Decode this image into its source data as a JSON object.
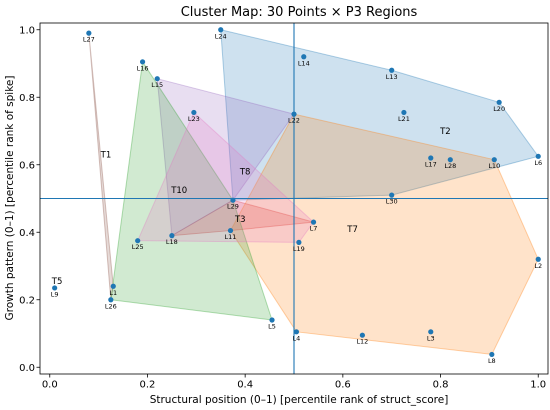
{
  "chart_data": {
    "type": "scatter",
    "title": "Cluster Map: 30 Points × P3 Regions",
    "xlabel": "Structural position (0–1) [percentile rank of struct_score]",
    "ylabel": "Growth pattern (0–1) [percentile rank of spike]",
    "xlim": [
      -0.02,
      1.02
    ],
    "ylim": [
      -0.02,
      1.02
    ],
    "xticks": [
      "0.0",
      "0.2",
      "0.4",
      "0.6",
      "0.8",
      "1.0"
    ],
    "yticks": [
      "0.0",
      "0.2",
      "0.4",
      "0.6",
      "0.8",
      "1.0"
    ],
    "xtick_values": [
      0,
      0.2,
      0.4,
      0.6,
      0.8,
      1.0
    ],
    "ytick_values": [
      0,
      0.2,
      0.4,
      0.6,
      0.8,
      1.0
    ],
    "reference_lines": {
      "x": 0.5,
      "y": 0.5,
      "color": "#1f77b4"
    },
    "point_color": "#1f77b4",
    "points": [
      {
        "label": "L27",
        "x": 0.08,
        "y": 0.99
      },
      {
        "label": "L24",
        "x": 0.35,
        "y": 1.0
      },
      {
        "label": "L14",
        "x": 0.52,
        "y": 0.92
      },
      {
        "label": "L16",
        "x": 0.19,
        "y": 0.905
      },
      {
        "label": "L13",
        "x": 0.7,
        "y": 0.88
      },
      {
        "label": "L15",
        "x": 0.22,
        "y": 0.855
      },
      {
        "label": "L20",
        "x": 0.92,
        "y": 0.785
      },
      {
        "label": "L23",
        "x": 0.295,
        "y": 0.755
      },
      {
        "label": "L22",
        "x": 0.5,
        "y": 0.75
      },
      {
        "label": "L21",
        "x": 0.725,
        "y": 0.755
      },
      {
        "label": "L6",
        "x": 1.0,
        "y": 0.625
      },
      {
        "label": "L17",
        "x": 0.78,
        "y": 0.62
      },
      {
        "label": "L28",
        "x": 0.82,
        "y": 0.615
      },
      {
        "label": "L10",
        "x": 0.91,
        "y": 0.615
      },
      {
        "label": "L30",
        "x": 0.7,
        "y": 0.51
      },
      {
        "label": "L29",
        "x": 0.375,
        "y": 0.495
      },
      {
        "label": "L7",
        "x": 0.54,
        "y": 0.43
      },
      {
        "label": "L11",
        "x": 0.37,
        "y": 0.405
      },
      {
        "label": "L18",
        "x": 0.25,
        "y": 0.39
      },
      {
        "label": "L25",
        "x": 0.18,
        "y": 0.375
      },
      {
        "label": "L19",
        "x": 0.51,
        "y": 0.37
      },
      {
        "label": "L2",
        "x": 1.0,
        "y": 0.32
      },
      {
        "label": "L1",
        "x": 0.13,
        "y": 0.24
      },
      {
        "label": "L9",
        "x": 0.01,
        "y": 0.235
      },
      {
        "label": "L26",
        "x": 0.125,
        "y": 0.2
      },
      {
        "label": "L5",
        "x": 0.455,
        "y": 0.14
      },
      {
        "label": "L4",
        "x": 0.505,
        "y": 0.105
      },
      {
        "label": "L3",
        "x": 0.78,
        "y": 0.105
      },
      {
        "label": "L12",
        "x": 0.64,
        "y": 0.095
      },
      {
        "label": "L8",
        "x": 0.905,
        "y": 0.038
      }
    ],
    "regions": [
      {
        "name": "T1",
        "color": "#8c564b",
        "label_at": [
          0.115,
          0.63
        ],
        "members": [
          "L27",
          "L1",
          "L26"
        ]
      },
      {
        "name": "T2",
        "color": "#1f77b4",
        "label_at": [
          0.81,
          0.7
        ],
        "members": [
          "L24",
          "L14",
          "L13",
          "L20",
          "L6",
          "L10",
          "L30",
          "L29",
          "L21"
        ]
      },
      {
        "name": "T3",
        "color": "#d62728",
        "label_at": [
          0.39,
          0.44
        ],
        "members": [
          "L18",
          "L29",
          "L7",
          "L11"
        ]
      },
      {
        "name": "T5",
        "color": "#bcbd22",
        "label_at": [
          0.015,
          0.255
        ],
        "members": [
          "L9"
        ]
      },
      {
        "name": "T7",
        "color": "#ff7f0e",
        "label_at": [
          0.62,
          0.41
        ],
        "members": [
          "L22",
          "L10",
          "L2",
          "L8",
          "L4",
          "L19",
          "L11"
        ]
      },
      {
        "name": "T8",
        "color": "#9467bd",
        "label_at": [
          0.4,
          0.58
        ],
        "members": [
          "L15",
          "L22",
          "L29",
          "L18"
        ]
      },
      {
        "name": "T10",
        "color": "#2ca02c",
        "label_at": [
          0.265,
          0.525
        ],
        "members": [
          "L16",
          "L29",
          "L5",
          "L26",
          "L1"
        ]
      },
      {
        "name": "",
        "color": "#e377c2",
        "label_at": null,
        "members": [
          "L23",
          "L7",
          "L19",
          "L25"
        ]
      }
    ]
  }
}
